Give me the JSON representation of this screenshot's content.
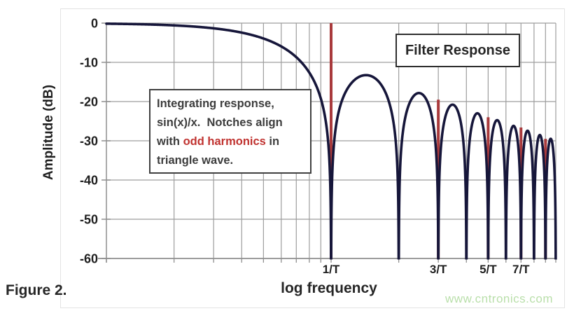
{
  "figure": {
    "caption": "Figure 2."
  },
  "watermark": {
    "text": "www.cntronics.com",
    "color": "#b9dfaa"
  },
  "annotation": {
    "pre": "Integrating response, sin(x)/x.  Notches align with ",
    "highlight": "odd harmonics",
    "post": " in triangle wave.",
    "highlight_color": "#c0322f"
  },
  "chart_data": {
    "type": "line",
    "title": "Filter Response",
    "xlabel": "log frequency",
    "ylabel": "Amplitude (dB)",
    "x_scale": "log",
    "x_unit": "frequency in multiples of 1/T",
    "xlim": [
      0.1,
      10
    ],
    "ylim": [
      -60,
      0
    ],
    "yticks": [
      0,
      -10,
      -20,
      -30,
      -40,
      -50,
      -60
    ],
    "xticks": [
      {
        "f": 1,
        "label": "1/T"
      },
      {
        "f": 3,
        "label": "3/T"
      },
      {
        "f": 5,
        "label": "5/T"
      },
      {
        "f": 7,
        "label": "7/T"
      }
    ],
    "x_gridlines": [
      0.2,
      0.3,
      0.4,
      0.5,
      0.6,
      0.7,
      0.8,
      0.9,
      1,
      2,
      3,
      4,
      5,
      6,
      7,
      8,
      9,
      10
    ],
    "grid_on": true,
    "grid_color": "#9d9d9d",
    "axis_color": "#8f8f8f",
    "legend_position": "top-right",
    "curve": {
      "name": "sin(x)/x integrating filter response",
      "formula_dB": "20*log10(abs(sin(pi*f*T)/(pi*f*T)))",
      "color": "#16163a",
      "notches_at": [
        1,
        2,
        3,
        4,
        5,
        6,
        7,
        8,
        9,
        10
      ],
      "lobe_peaks_dB": [
        -13.3,
        -17.8,
        -20.8,
        -23.0,
        -24.8,
        -26.3,
        -27.6,
        -28.7,
        -29.8
      ]
    },
    "harmonic_markers": {
      "name": "odd harmonics of triangle wave",
      "color": "#a93a3c",
      "lines": [
        {
          "f": 1,
          "top_dB": 0
        },
        {
          "f": 3,
          "top_dB": -19.5
        },
        {
          "f": 5,
          "top_dB": -24.0
        },
        {
          "f": 7,
          "top_dB": -26.6
        },
        {
          "f": 9,
          "top_dB": -29.5
        }
      ]
    }
  }
}
